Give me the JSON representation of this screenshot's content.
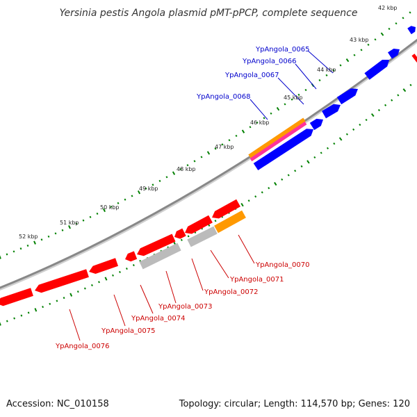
{
  "title": "Yersinia pestis Angola plasmid pMT-pPCP, complete sequence",
  "footer": {
    "accession": "Accession: NC_010158",
    "summary": "Topology: circular; Length: 114,570 bp; Genes: 120"
  },
  "tick_labels": [
    "42 kbp",
    "43 kbp",
    "44 kbp",
    "45 kbp",
    "46 kbp",
    "47 kbp",
    "48 kbp",
    "49 kbp",
    "50 kbp",
    "51 kbp",
    "52 kbp"
  ],
  "colors": {
    "forward_cds": "#0000ff",
    "reverse_cds": "#ff0000",
    "other": "#bbbbbb",
    "orange": "#ff9900",
    "pink": "#ff3399",
    "backbone": "#888888",
    "ticks": "#008000",
    "forward_label": "#0000cc",
    "reverse_label": "#cc0000"
  },
  "forward_gene_labels": [
    "YpAngola_0065",
    "YpAngola_0066",
    "YpAngola_0067",
    "YpAngola_0068"
  ],
  "reverse_gene_labels": [
    "YpAngola_0070",
    "YpAngola_0071",
    "YpAngola_0072",
    "YpAngola_0073",
    "YpAngola_0074",
    "YpAngola_0075",
    "YpAngola_0076"
  ]
}
